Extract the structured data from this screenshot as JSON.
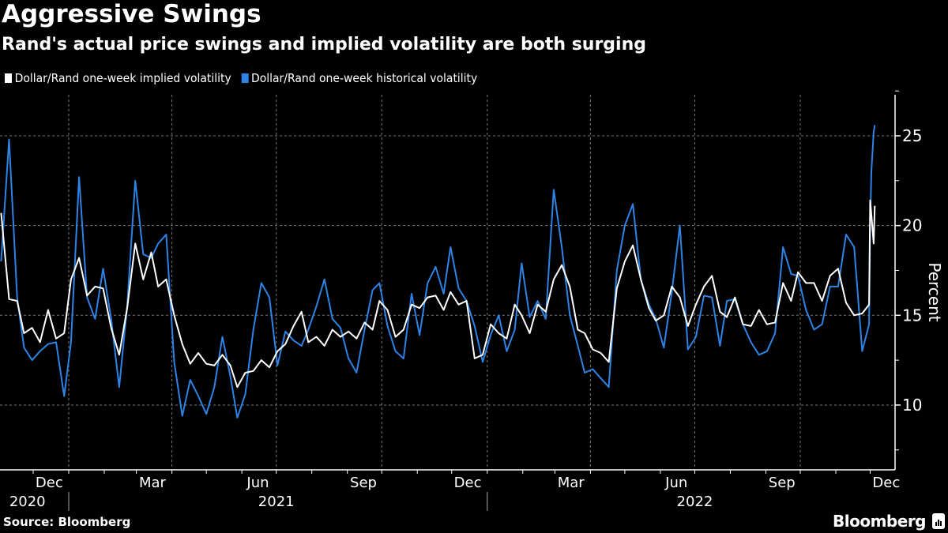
{
  "header": {
    "title": "Aggressive Swings",
    "subtitle": "Rand's actual price swings and implied volatility are both surging"
  },
  "footer": {
    "source": "Source: Bloomberg",
    "brand": "Bloomberg"
  },
  "chart_data": {
    "type": "line",
    "title": "Aggressive Swings",
    "subtitle": "Rand's actual price swings and implied volatility are both surging",
    "ylabel": "Percent",
    "xlabel": "",
    "y_axis_side": "right",
    "ylim": [
      6.5,
      27.3
    ],
    "xlim": [
      "2020-11-02",
      "2022-12-22"
    ],
    "y_ticks": [
      10,
      15,
      20,
      25
    ],
    "y_tick_labels": [
      "10",
      "15",
      "20",
      "25"
    ],
    "x_tick_labels": [
      {
        "label": "Dec",
        "date": "2020-12-15"
      },
      {
        "label": "Mar",
        "date": "2021-03-15"
      },
      {
        "label": "Jun",
        "date": "2021-06-15"
      },
      {
        "label": "Sep",
        "date": "2021-09-15"
      },
      {
        "label": "Dec",
        "date": "2021-12-15"
      },
      {
        "label": "Mar",
        "date": "2022-03-15"
      },
      {
        "label": "Jun",
        "date": "2022-06-15"
      },
      {
        "label": "Sep",
        "date": "2022-09-15"
      },
      {
        "label": "Dec",
        "date": "2022-12-15"
      }
    ],
    "year_labels": [
      {
        "label": "2020",
        "date": "2020-11-26"
      },
      {
        "label": "2021",
        "date": "2021-07-01"
      },
      {
        "label": "2022",
        "date": "2022-07-01"
      }
    ],
    "grid": true,
    "legend_position": "top-left",
    "x": [
      "2020-11-03",
      "2020-11-10",
      "2020-11-17",
      "2020-11-23",
      "2020-11-30",
      "2020-12-07",
      "2020-12-14",
      "2020-12-21",
      "2020-12-28",
      "2021-01-03",
      "2021-01-10",
      "2021-01-17",
      "2021-01-24",
      "2021-01-31",
      "2021-02-07",
      "2021-02-14",
      "2021-02-21",
      "2021-02-28",
      "2021-03-07",
      "2021-03-14",
      "2021-03-20",
      "2021-03-27",
      "2021-04-03",
      "2021-04-10",
      "2021-04-17",
      "2021-04-24",
      "2021-05-01",
      "2021-05-08",
      "2021-05-15",
      "2021-05-22",
      "2021-05-28",
      "2021-06-04",
      "2021-06-11",
      "2021-06-18",
      "2021-06-25",
      "2021-07-02",
      "2021-07-09",
      "2021-07-16",
      "2021-07-23",
      "2021-07-29",
      "2021-08-05",
      "2021-08-12",
      "2021-08-19",
      "2021-08-26",
      "2021-09-02",
      "2021-09-09",
      "2021-09-16",
      "2021-09-23",
      "2021-09-29",
      "2021-10-06",
      "2021-10-13",
      "2021-10-20",
      "2021-10-27",
      "2021-11-03",
      "2021-11-10",
      "2021-11-17",
      "2021-11-24",
      "2021-11-30",
      "2021-12-07",
      "2021-12-14",
      "2021-12-21",
      "2021-12-28",
      "2022-01-04",
      "2022-01-11",
      "2022-01-18",
      "2022-01-25",
      "2022-01-31",
      "2022-02-07",
      "2022-02-14",
      "2022-02-21",
      "2022-02-28",
      "2022-03-07",
      "2022-03-14",
      "2022-03-21",
      "2022-03-27",
      "2022-04-03",
      "2022-04-10",
      "2022-04-17",
      "2022-04-24",
      "2022-05-01",
      "2022-05-08",
      "2022-05-15",
      "2022-05-22",
      "2022-05-28",
      "2022-06-04",
      "2022-06-11",
      "2022-06-18",
      "2022-06-25",
      "2022-07-02",
      "2022-07-09",
      "2022-07-16",
      "2022-07-23",
      "2022-07-29",
      "2022-08-05",
      "2022-08-12",
      "2022-08-19",
      "2022-08-26",
      "2022-09-02",
      "2022-09-09",
      "2022-09-16",
      "2022-09-23",
      "2022-09-29",
      "2022-10-06",
      "2022-10-13",
      "2022-10-20",
      "2022-10-27",
      "2022-11-03",
      "2022-11-10",
      "2022-11-17",
      "2022-11-24",
      "2022-11-30",
      "2022-12-01",
      "2022-12-02",
      "2022-12-04",
      "2022-12-05"
    ],
    "series": [
      {
        "name": "Dollar/Rand one-week implied volatility",
        "color": "#ffffff",
        "values": [
          20.7,
          15.9,
          15.8,
          14.0,
          14.3,
          13.5,
          15.3,
          13.7,
          14.0,
          17.0,
          18.2,
          16.1,
          16.6,
          16.5,
          14.3,
          12.8,
          15.4,
          19.0,
          17.0,
          18.5,
          16.6,
          17.0,
          15.0,
          13.4,
          12.3,
          12.9,
          12.3,
          12.2,
          12.8,
          12.2,
          11.0,
          11.8,
          11.9,
          12.5,
          12.1,
          13.0,
          13.4,
          14.4,
          15.2,
          13.5,
          13.8,
          13.3,
          14.2,
          13.8,
          14.1,
          13.7,
          14.6,
          14.2,
          15.8,
          15.3,
          13.8,
          14.2,
          15.6,
          15.4,
          16.0,
          16.1,
          15.3,
          16.3,
          15.6,
          15.8,
          12.6,
          12.8,
          14.5,
          14.0,
          13.7,
          15.6,
          15.0,
          14.0,
          15.6,
          15.2,
          17.0,
          17.8,
          16.6,
          14.2,
          14.0,
          13.1,
          12.9,
          12.4,
          16.5,
          18.0,
          18.9,
          17.0,
          15.4,
          14.7,
          15.0,
          16.6,
          16.0,
          14.4,
          15.6,
          16.6,
          17.2,
          15.2,
          14.9,
          16.0,
          14.5,
          14.4,
          15.3,
          14.5,
          14.6,
          16.8,
          15.8,
          17.4,
          16.8,
          16.8,
          15.8,
          17.2,
          17.6,
          15.7,
          15.0,
          15.1,
          15.6,
          21.4,
          20.6,
          19.0,
          21.1
        ]
      },
      {
        "name": "Dollar/Rand one-week historical volatility",
        "color": "#2d84e6",
        "values": [
          18.0,
          24.8,
          16.0,
          13.2,
          12.5,
          13.0,
          13.4,
          13.5,
          10.5,
          13.5,
          22.7,
          16.0,
          14.8,
          17.6,
          14.8,
          11.0,
          15.5,
          22.5,
          18.4,
          18.2,
          19.0,
          19.5,
          12.4,
          9.4,
          11.4,
          10.5,
          9.5,
          11.0,
          13.8,
          11.6,
          9.3,
          10.6,
          14.2,
          16.8,
          16.0,
          12.2,
          14.1,
          13.6,
          13.3,
          14.2,
          15.5,
          17.0,
          14.8,
          14.3,
          12.6,
          11.8,
          14.2,
          16.4,
          16.8,
          14.4,
          13.0,
          12.6,
          16.2,
          13.9,
          16.8,
          17.7,
          16.2,
          18.8,
          16.5,
          15.8,
          14.4,
          12.4,
          13.9,
          15.0,
          13.0,
          14.2,
          17.9,
          14.9,
          15.8,
          14.8,
          22.0,
          18.8,
          15.0,
          13.3,
          11.8,
          12.0,
          11.5,
          11.0,
          17.5,
          20.0,
          21.2,
          17.0,
          15.6,
          14.8,
          13.2,
          16.3,
          20.0,
          13.1,
          13.8,
          16.1,
          16.0,
          13.3,
          15.8,
          15.9,
          14.5,
          13.5,
          12.8,
          13.0,
          14.0,
          18.8,
          17.3,
          17.2,
          15.3,
          14.2,
          14.5,
          16.6,
          16.6,
          19.5,
          18.8,
          13.0,
          14.5,
          20.0,
          23.0,
          25.2,
          25.6
        ]
      }
    ]
  }
}
